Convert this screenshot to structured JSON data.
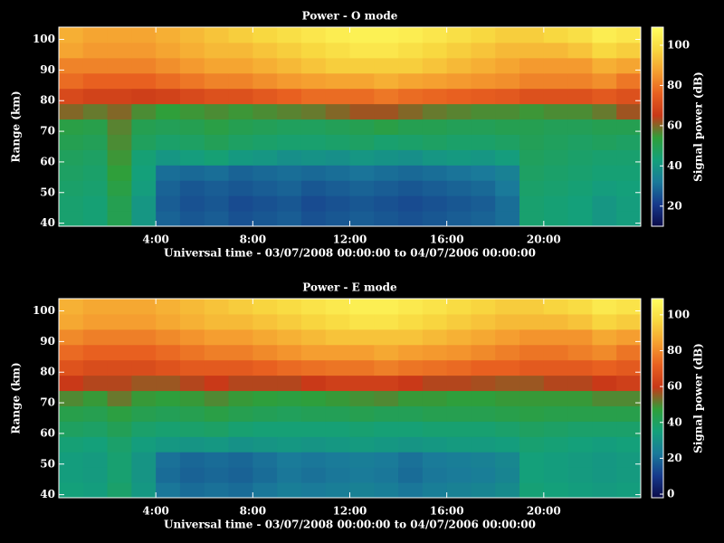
{
  "chart_data": [
    {
      "type": "heatmap",
      "title": "Power - O mode",
      "xlabel": "Universal time - 03/07/2008 00:00:00 to 04/07/2006 00:00:00",
      "ylabel": "Range (km)",
      "xlim": [
        0,
        24
      ],
      "ylim": [
        39,
        104
      ],
      "xticks": [
        {
          "value": 4,
          "label": "4:00"
        },
        {
          "value": 8,
          "label": "8:00"
        },
        {
          "value": 12,
          "label": "12:00"
        },
        {
          "value": 16,
          "label": "16:00"
        },
        {
          "value": 20,
          "label": "20:00"
        }
      ],
      "yticks": [
        40,
        50,
        60,
        70,
        80,
        90,
        100
      ],
      "x_bins": [
        0,
        1,
        2,
        3,
        4,
        5,
        6,
        7,
        8,
        9,
        10,
        11,
        12,
        13,
        14,
        15,
        16,
        17,
        18,
        19,
        20,
        21,
        22,
        23,
        24
      ],
      "y_bins": [
        39,
        44,
        49,
        54,
        59,
        64,
        69,
        74,
        79,
        84,
        89,
        94,
        99,
        104
      ],
      "z": [
        [
          45,
          44,
          50,
          40,
          28,
          26,
          27,
          25,
          26,
          27,
          25,
          26,
          27,
          26,
          25,
          26,
          27,
          28,
          30,
          45,
          44,
          43,
          40,
          42
        ],
        [
          45,
          44,
          50,
          40,
          27,
          25,
          26,
          24,
          25,
          26,
          24,
          25,
          26,
          25,
          24,
          25,
          26,
          27,
          30,
          45,
          44,
          43,
          40,
          42
        ],
        [
          46,
          45,
          52,
          42,
          28,
          26,
          27,
          26,
          27,
          28,
          26,
          27,
          28,
          27,
          26,
          27,
          28,
          29,
          32,
          46,
          45,
          44,
          42,
          43
        ],
        [
          47,
          46,
          54,
          43,
          30,
          29,
          30,
          28,
          29,
          30,
          29,
          30,
          31,
          30,
          29,
          30,
          31,
          32,
          34,
          47,
          46,
          45,
          44,
          44
        ],
        [
          48,
          47,
          55,
          44,
          40,
          42,
          44,
          41,
          40,
          38,
          39,
          38,
          40,
          39,
          38,
          40,
          41,
          40,
          42,
          48,
          47,
          46,
          45,
          45
        ],
        [
          50,
          49,
          56,
          48,
          46,
          47,
          49,
          47,
          46,
          45,
          45,
          46,
          47,
          45,
          46,
          47,
          46,
          46,
          47,
          49,
          48,
          47,
          48,
          47
        ],
        [
          52,
          51,
          57,
          50,
          49,
          50,
          52,
          50,
          49,
          48,
          48,
          49,
          50,
          52,
          50,
          50,
          49,
          49,
          50,
          50,
          49,
          49,
          50,
          50
        ],
        [
          60,
          58,
          60,
          56,
          54,
          55,
          56,
          55,
          56,
          57,
          58,
          60,
          62,
          62,
          60,
          58,
          57,
          56,
          56,
          55,
          56,
          56,
          58,
          62
        ],
        [
          70,
          68,
          68,
          67,
          68,
          70,
          72,
          72,
          74,
          76,
          78,
          78,
          78,
          80,
          78,
          77,
          76,
          75,
          74,
          72,
          72,
          72,
          74,
          72
        ],
        [
          78,
          76,
          76,
          76,
          78,
          80,
          82,
          82,
          84,
          86,
          87,
          88,
          88,
          90,
          88,
          87,
          86,
          85,
          84,
          82,
          82,
          82,
          84,
          80
        ],
        [
          82,
          82,
          82,
          82,
          84,
          86,
          88,
          88,
          90,
          92,
          94,
          96,
          96,
          96,
          96,
          94,
          92,
          90,
          88,
          86,
          86,
          86,
          90,
          88
        ],
        [
          88,
          86,
          86,
          86,
          88,
          90,
          92,
          92,
          94,
          96,
          98,
          100,
          102,
          102,
          100,
          98,
          96,
          94,
          92,
          92,
          92,
          94,
          98,
          96
        ],
        [
          90,
          88,
          88,
          88,
          90,
          92,
          94,
          96,
          98,
          100,
          102,
          104,
          105,
          105,
          104,
          102,
          100,
          98,
          96,
          96,
          98,
          100,
          104,
          102
        ]
      ],
      "colorscale": [
        "#0b0b4a",
        "#173a8c",
        "#1a7a9a",
        "#14a07a",
        "#2f9f3a",
        "#c83818",
        "#e86020",
        "#f5a030",
        "#f8d840",
        "#ffff60"
      ],
      "colorbar": {
        "label": "Signal power (dB)",
        "lim": [
          10,
          109
        ],
        "ticks": [
          20,
          40,
          60,
          80,
          100
        ]
      }
    },
    {
      "type": "heatmap",
      "title": "Power - E mode",
      "xlabel": "Universal time - 03/07/2008 00:00:00 to 04/07/2006 00:00:00",
      "ylabel": "Range (km)",
      "xlim": [
        0,
        24
      ],
      "ylim": [
        39,
        104
      ],
      "xticks": [
        {
          "value": 4,
          "label": "4:00"
        },
        {
          "value": 8,
          "label": "8:00"
        },
        {
          "value": 12,
          "label": "12:00"
        },
        {
          "value": 16,
          "label": "16:00"
        },
        {
          "value": 20,
          "label": "20:00"
        }
      ],
      "yticks": [
        40,
        50,
        60,
        70,
        80,
        90,
        100
      ],
      "x_bins": [
        0,
        1,
        2,
        3,
        4,
        5,
        6,
        7,
        8,
        9,
        10,
        11,
        12,
        13,
        14,
        15,
        16,
        17,
        18,
        19,
        20,
        21,
        22,
        23,
        24
      ],
      "y_bins": [
        39,
        44,
        49,
        54,
        59,
        64,
        69,
        74,
        79,
        84,
        89,
        94,
        99,
        104
      ],
      "z": [
        [
          35,
          34,
          38,
          32,
          22,
          20,
          21,
          20,
          22,
          24,
          23,
          24,
          25,
          24,
          22,
          24,
          25,
          26,
          28,
          36,
          35,
          34,
          33,
          34
        ],
        [
          34,
          33,
          37,
          31,
          20,
          18,
          19,
          18,
          20,
          22,
          21,
          22,
          23,
          22,
          20,
          22,
          23,
          24,
          26,
          35,
          34,
          33,
          32,
          33
        ],
        [
          34,
          33,
          37,
          31,
          21,
          19,
          20,
          19,
          21,
          23,
          22,
          23,
          24,
          23,
          21,
          23,
          24,
          25,
          27,
          35,
          34,
          33,
          32,
          33
        ],
        [
          36,
          35,
          38,
          34,
          32,
          31,
          32,
          30,
          31,
          32,
          31,
          32,
          33,
          32,
          31,
          32,
          33,
          33,
          34,
          37,
          36,
          35,
          34,
          35
        ],
        [
          40,
          39,
          42,
          38,
          37,
          38,
          39,
          37,
          36,
          36,
          36,
          36,
          37,
          36,
          36,
          37,
          37,
          37,
          38,
          40,
          39,
          38,
          38,
          38
        ],
        [
          44,
          43,
          46,
          43,
          42,
          43,
          45,
          43,
          42,
          41,
          42,
          42,
          43,
          42,
          42,
          43,
          43,
          43,
          44,
          45,
          44,
          44,
          44,
          44
        ],
        [
          50,
          48,
          52,
          48,
          47,
          48,
          50,
          48,
          47,
          46,
          47,
          48,
          49,
          50,
          48,
          48,
          47,
          47,
          48,
          48,
          48,
          48,
          50,
          50
        ],
        [
          60,
          58,
          58,
          56,
          56,
          58,
          60,
          58,
          58,
          58,
          60,
          62,
          62,
          62,
          60,
          58,
          58,
          57,
          56,
          56,
          58,
          58,
          60,
          62
        ],
        [
          68,
          66,
          66,
          66,
          68,
          70,
          70,
          70,
          72,
          74,
          75,
          76,
          76,
          78,
          76,
          75,
          74,
          72,
          72,
          70,
          70,
          70,
          72,
          70
        ],
        [
          74,
          72,
          72,
          72,
          74,
          76,
          78,
          78,
          80,
          82,
          84,
          84,
          84,
          86,
          84,
          83,
          82,
          80,
          78,
          76,
          76,
          78,
          80,
          76
        ],
        [
          80,
          78,
          78,
          78,
          80,
          82,
          84,
          84,
          86,
          88,
          90,
          92,
          92,
          92,
          92,
          90,
          88,
          86,
          84,
          82,
          82,
          82,
          86,
          84
        ],
        [
          86,
          84,
          84,
          84,
          86,
          88,
          90,
          90,
          92,
          94,
          96,
          98,
          100,
          100,
          98,
          96,
          94,
          92,
          90,
          90,
          90,
          92,
          96,
          94
        ],
        [
          88,
          86,
          86,
          86,
          88,
          90,
          92,
          94,
          96,
          98,
          100,
          102,
          104,
          104,
          102,
          100,
          98,
          96,
          94,
          94,
          96,
          98,
          102,
          100
        ]
      ],
      "colorscale": [
        "#0b0b4a",
        "#173a8c",
        "#1a7a9a",
        "#14a07a",
        "#2f9f3a",
        "#c83818",
        "#e86020",
        "#f5a030",
        "#f8d840",
        "#ffff60"
      ],
      "colorbar": {
        "label": "Signal power (dB)",
        "lim": [
          -2,
          109
        ],
        "ticks": [
          0,
          20,
          40,
          60,
          80,
          100
        ]
      }
    }
  ]
}
